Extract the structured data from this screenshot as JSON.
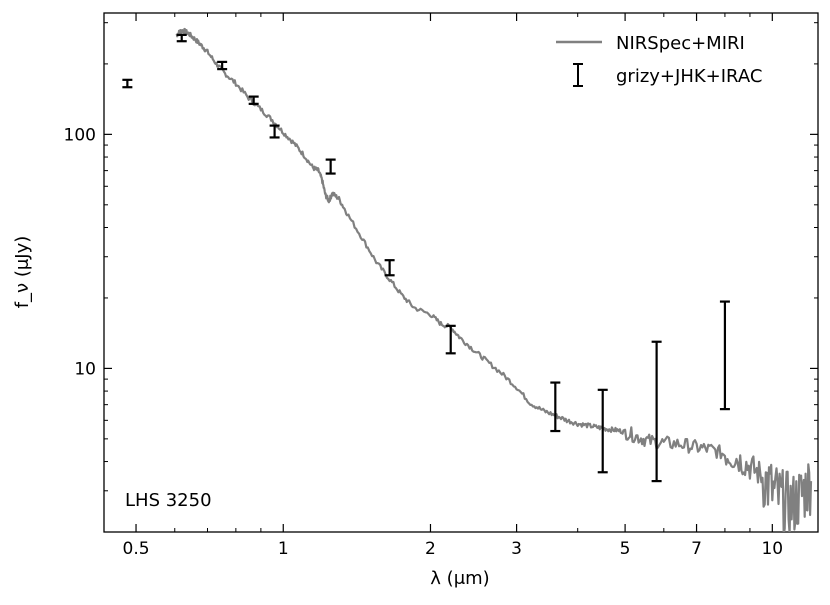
{
  "chart_data": {
    "type": "line",
    "title": "",
    "annotation": "LHS 3250",
    "xlabel": "λ (μm)",
    "ylabel": "f_ν (μJy)",
    "xscale": "log",
    "yscale": "log",
    "xlim": [
      0.43,
      12.4
    ],
    "ylim": [
      2.0,
      330
    ],
    "xticks": [
      {
        "value": 0.5,
        "label": "0.5"
      },
      {
        "value": 1,
        "label": "1"
      },
      {
        "value": 2,
        "label": "2"
      },
      {
        "value": 3,
        "label": "3"
      },
      {
        "value": 5,
        "label": "5"
      },
      {
        "value": 7,
        "label": "7"
      },
      {
        "value": 10,
        "label": "10"
      }
    ],
    "yticks": [
      {
        "value": 10,
        "label": "10"
      },
      {
        "value": 100,
        "label": "100"
      }
    ],
    "legend_position": "top-right",
    "series": [
      {
        "name": "NIRSpec+MIRI",
        "kind": "line",
        "color": "#808080",
        "x": [
          0.605,
          0.615,
          0.625,
          0.64,
          0.66,
          0.68,
          0.7,
          0.73,
          0.76,
          0.8,
          0.85,
          0.9,
          0.95,
          1.0,
          1.05,
          1.1,
          1.15,
          1.18,
          1.2,
          1.22,
          1.24,
          1.26,
          1.3,
          1.35,
          1.45,
          1.55,
          1.65,
          1.75,
          1.85,
          2.0,
          2.1,
          2.2,
          2.3,
          2.45,
          2.6,
          2.8,
          3.0,
          3.2,
          3.4,
          3.6,
          3.8,
          4.0,
          4.2,
          4.4,
          4.6,
          4.8,
          5.0,
          5.3,
          5.6,
          6.0,
          6.5,
          7.0,
          7.5,
          8.0,
          8.5,
          9.0,
          9.5,
          10.0,
          10.5,
          11.0,
          11.5,
          12.0
        ],
        "y": [
          265,
          275,
          278,
          270,
          255,
          240,
          225,
          200,
          182,
          165,
          143,
          128,
          115,
          102,
          92,
          82,
          72,
          70,
          64,
          55,
          52,
          56,
          53,
          46,
          36,
          28.5,
          24,
          20.5,
          18.2,
          17,
          15.5,
          15,
          13.5,
          12,
          10.8,
          9.5,
          8.3,
          7.1,
          6.6,
          6.3,
          6.0,
          5.8,
          5.7,
          5.6,
          5.5,
          5.45,
          5.35,
          5.1,
          4.9,
          4.8,
          4.75,
          4.6,
          4.5,
          4.3,
          4.1,
          3.8,
          3.5,
          3.0,
          2.7,
          2.6,
          2.9,
          3.3
        ]
      },
      {
        "name": "grizy+JHK+IRAC",
        "kind": "errorbar",
        "color": "#000000",
        "x": [
          0.48,
          0.62,
          0.75,
          0.87,
          0.96,
          1.25,
          1.65,
          2.2,
          3.6,
          4.5,
          5.8,
          8.0
        ],
        "y": [
          165,
          258,
          197,
          140,
          103,
          73,
          27,
          13.2,
          6.9,
          5.8,
          8.0,
          12.5
        ],
        "yerr_low": [
          6,
          8,
          7,
          5,
          6,
          5,
          2,
          1.6,
          1.5,
          2.2,
          4.7,
          5.8
        ],
        "yerr_high": [
          6,
          8,
          7,
          5,
          6,
          5,
          2,
          2.0,
          1.8,
          2.3,
          5.0,
          6.8
        ]
      }
    ]
  }
}
